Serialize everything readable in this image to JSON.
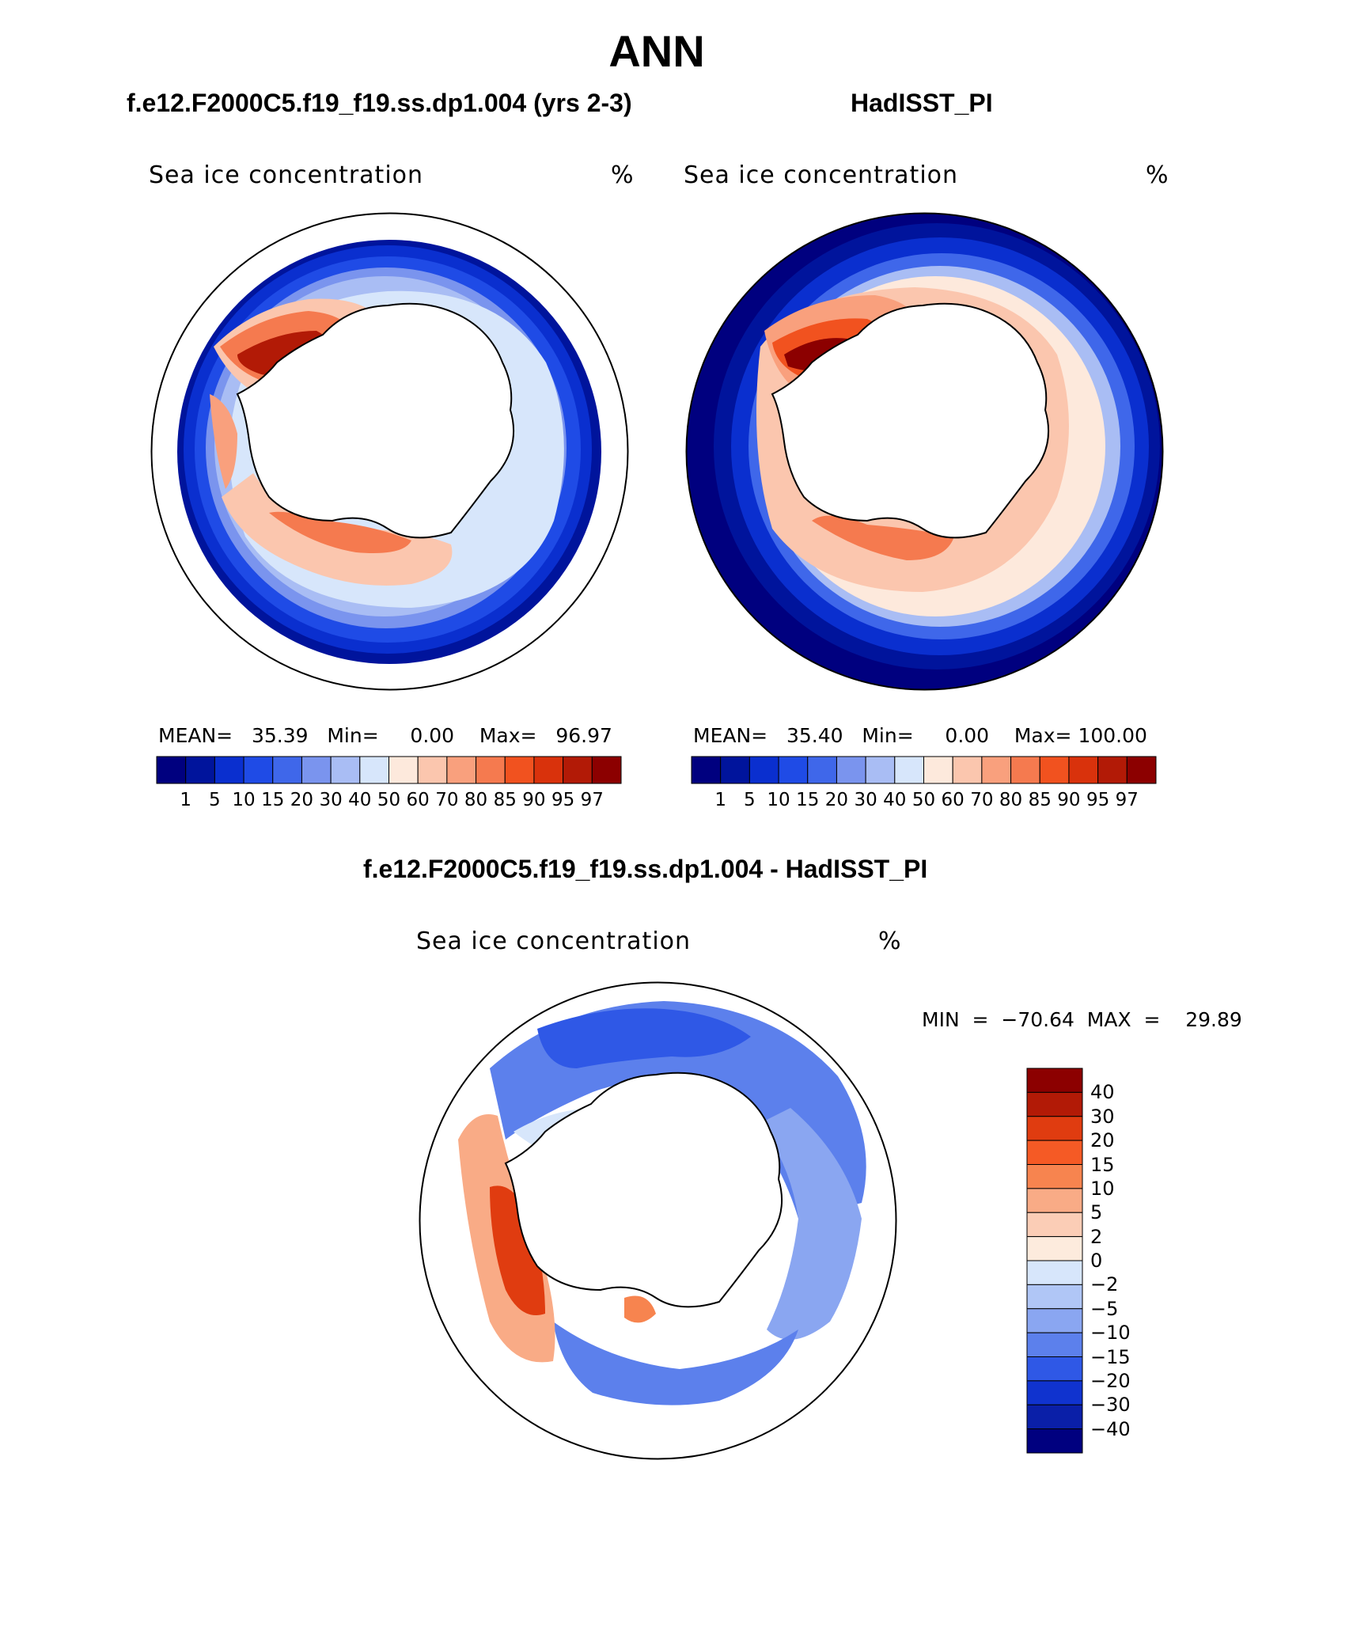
{
  "figure": {
    "title": "ANN",
    "left_title": "f.e12.F2000C5.f19_f19.ss.dp1.004 (yrs 2-3)",
    "right_title": "HadISST_PI",
    "diff_title": "f.e12.F2000C5.f19_f19.ss.dp1.004 - HadISST_PI"
  },
  "panels": {
    "model": {
      "label": "Sea ice concentration",
      "unit": "%",
      "stats": "MEAN=   35.39   Min=     0.00    Max=   96.97",
      "mean": 35.39,
      "min": 0.0,
      "max": 96.97
    },
    "obs": {
      "label": "Sea ice concentration",
      "unit": "%",
      "stats": "MEAN=   35.40   Min=     0.00    Max= 100.00",
      "mean": 35.4,
      "min": 0.0,
      "max": 100.0
    },
    "diff": {
      "label": "Sea ice concentration",
      "unit": "%",
      "stats": "MIN  =  −70.64  MAX  =    29.89",
      "min": -70.64,
      "max": 29.89
    }
  },
  "colorbar_abs": {
    "levels": [
      "1",
      "5",
      "10",
      "15",
      "20",
      "30",
      "40",
      "50",
      "60",
      "70",
      "80",
      "85",
      "90",
      "95",
      "97"
    ],
    "colors": [
      "#00007f",
      "#00149c",
      "#0a2fcf",
      "#1f4be6",
      "#3f67ea",
      "#7a94ee",
      "#a9bdf4",
      "#d7e6fb",
      "#fde9dc",
      "#fbc6ae",
      "#f9a07d",
      "#f57a4f",
      "#f1521f",
      "#d9320c",
      "#b21a06",
      "#8c0000"
    ]
  },
  "colorbar_diff": {
    "levels": [
      "40",
      "30",
      "20",
      "15",
      "10",
      "5",
      "2",
      "0",
      "−2",
      "−5",
      "−10",
      "−15",
      "−20",
      "−30",
      "−40"
    ],
    "colors": [
      "#8c0000",
      "#b21a06",
      "#e03c10",
      "#f55a25",
      "#f7844f",
      "#f9ab86",
      "#fbcdb6",
      "#fdebdd",
      "#d7e6fb",
      "#b0c6f6",
      "#8aa6f1",
      "#5c80ec",
      "#2f58e6",
      "#1033cf",
      "#0a1fa8",
      "#00007f"
    ]
  }
}
